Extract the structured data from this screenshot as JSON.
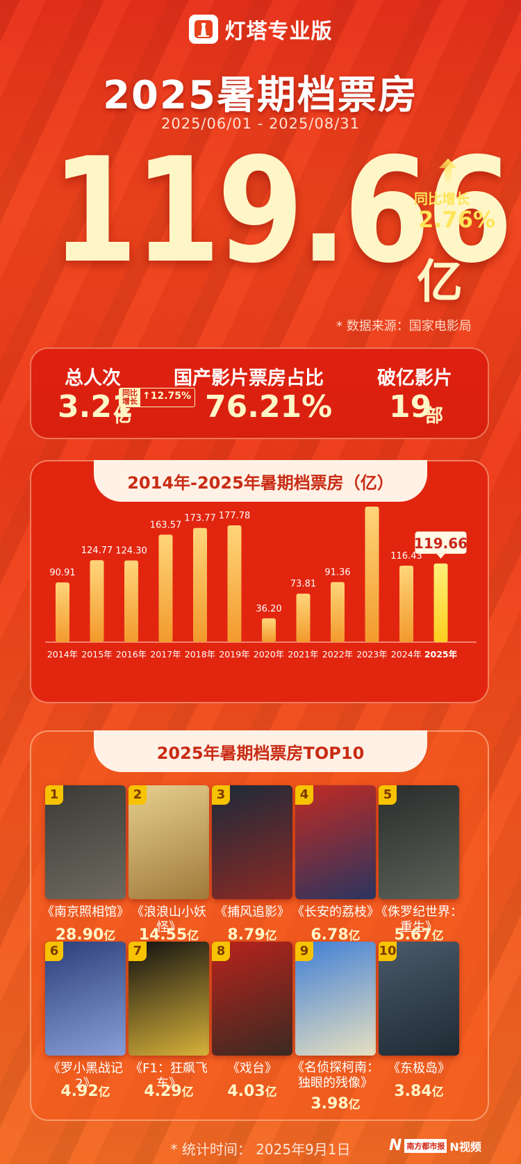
{
  "header": {
    "app_name": "灯塔专业版",
    "title": "2025暑期档票房",
    "date_range": "2025/06/01 - 2025/08/31"
  },
  "hero": {
    "total": "119.66",
    "unit": "亿",
    "yoy_label": "同比增长",
    "yoy_value": "2.76%",
    "source": "* 数据来源：国家电影局"
  },
  "stats": {
    "admissions_label": "总人次",
    "admissions_value": "3.21",
    "admissions_unit": "亿",
    "admissions_yoy_label_1": "同比",
    "admissions_yoy_label_2": "增长",
    "admissions_yoy_value": "12.75%",
    "domestic_share_label": "国产影片票房占比",
    "domestic_share_value": "76.21%",
    "blockbusters_label": "破亿影片",
    "blockbusters_value": "19",
    "blockbusters_unit": "部"
  },
  "chart_tab": "2014年-2025年暑期档票房（亿）",
  "chart_data": {
    "type": "bar",
    "title": "2014年-2025年暑期档票房（亿）",
    "categories": [
      "2014年",
      "2015年",
      "2016年",
      "2017年",
      "2018年",
      "2019年",
      "2020年",
      "2021年",
      "2022年",
      "2023年",
      "2024年",
      "2025年"
    ],
    "values": [
      90.91,
      124.77,
      124.3,
      163.57,
      173.77,
      177.78,
      36.2,
      73.81,
      91.36,
      206.3,
      116.43,
      119.66
    ],
    "highlight": "2025年",
    "ylim": [
      0,
      206.3
    ],
    "grid": false,
    "colors": {
      "bar_top": "#ffd57a",
      "bar_bottom": "#f29a2c",
      "highlight_top": "#fff07a",
      "highlight_bottom": "#ffce1e"
    }
  },
  "top10_tab": "2025年暑期档票房TOP10",
  "top10": [
    {
      "rank": "1",
      "title": "《南京照相馆》",
      "box": "28.90",
      "unit": "亿",
      "colors": [
        "#3b3a36",
        "#6e6a60"
      ]
    },
    {
      "rank": "2",
      "title": "《浪浪山小妖怪》",
      "box": "14.55",
      "unit": "亿",
      "colors": [
        "#e6cf8e",
        "#a07a3b"
      ]
    },
    {
      "rank": "3",
      "title": "《捕风追影》",
      "box": "8.79",
      "unit": "亿",
      "colors": [
        "#1c2a3a",
        "#8c2a24"
      ]
    },
    {
      "rank": "4",
      "title": "《长安的荔枝》",
      "box": "6.78",
      "unit": "亿",
      "colors": [
        "#c22a22",
        "#2a3560"
      ]
    },
    {
      "rank": "5",
      "title": "《侏罗纪世界：重生》",
      "box": "5.67",
      "unit": "亿",
      "colors": [
        "#2a2d2c",
        "#5c6158"
      ]
    },
    {
      "rank": "6",
      "title": "《罗小黑战记2》",
      "box": "4.92",
      "unit": "亿",
      "colors": [
        "#2b3e7a",
        "#8a9fd6"
      ]
    },
    {
      "rank": "7",
      "title": "《F1：狂飙飞车》",
      "box": "4.29",
      "unit": "亿",
      "colors": [
        "#111111",
        "#d8b23a"
      ]
    },
    {
      "rank": "8",
      "title": "《戏台》",
      "box": "4.03",
      "unit": "亿",
      "colors": [
        "#b8231c",
        "#3a2a22"
      ]
    },
    {
      "rank": "9",
      "title": "《名侦探柯南：独眼的残像》",
      "title_l1": "《名侦探柯南：",
      "title_l2": "独眼的残像》",
      "box": "3.98",
      "unit": "亿",
      "colors": [
        "#3f7fd6",
        "#e8e0c0"
      ]
    },
    {
      "rank": "10",
      "title": "《东极岛》",
      "box": "3.84",
      "unit": "亿",
      "colors": [
        "#4a5a6a",
        "#1f2a34"
      ]
    }
  ],
  "footer": "* 统计时间：  2025年9月1日",
  "watermark": {
    "brand": "N",
    "outlet": "南方都市报",
    "video": "N视频"
  }
}
